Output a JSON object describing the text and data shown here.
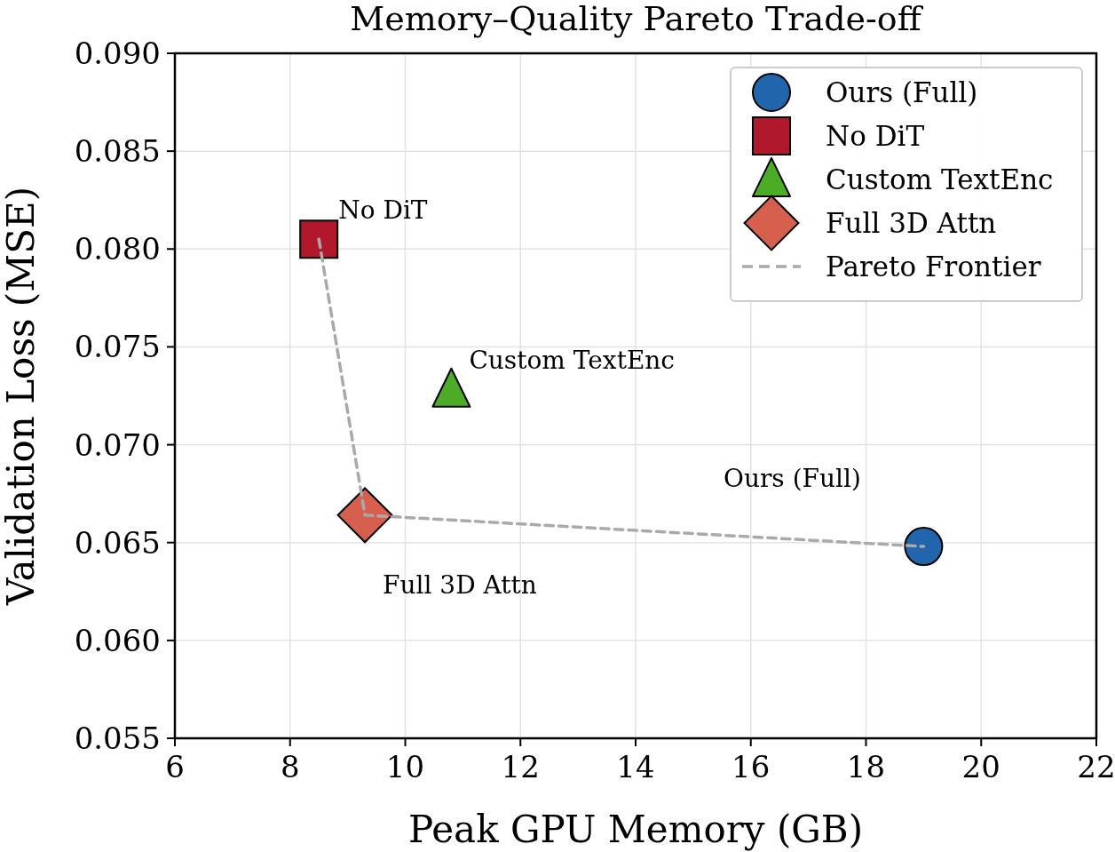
{
  "chart_data": {
    "type": "scatter",
    "title": "Memory–Quality Pareto Trade-off",
    "xlabel": "Peak GPU Memory (GB)",
    "ylabel": "Validation Loss (MSE)",
    "xlim": [
      6,
      22
    ],
    "xticks": [
      6,
      8,
      10,
      12,
      14,
      16,
      18,
      20,
      22
    ],
    "ylim": [
      0.055,
      0.09
    ],
    "yticks": [
      {
        "value": 0.055,
        "label": "0.055"
      },
      {
        "value": 0.06,
        "label": "0.060"
      },
      {
        "value": 0.065,
        "label": "0.065"
      },
      {
        "value": 0.07,
        "label": "0.070"
      },
      {
        "value": 0.075,
        "label": "0.075"
      },
      {
        "value": 0.08,
        "label": "0.080"
      },
      {
        "value": 0.085,
        "label": "0.085"
      },
      {
        "value": 0.09,
        "label": "0.090"
      }
    ],
    "grid": true,
    "legend": "top right",
    "series": [
      {
        "name": "Ours (Full)",
        "marker": "circle",
        "color": "#2166ac",
        "x": [
          19.0
        ],
        "values": [
          0.0648
        ]
      },
      {
        "name": "No DiT",
        "marker": "square",
        "color": "#b2182b",
        "x": [
          8.5
        ],
        "values": [
          0.0805
        ]
      },
      {
        "name": "Custom TextEnc",
        "marker": "triangle",
        "color": "#4dac26",
        "x": [
          10.8
        ],
        "values": [
          0.0728
        ]
      },
      {
        "name": "Full 3D Attn",
        "marker": "diamond",
        "color": "#d6604d",
        "x": [
          9.3
        ],
        "values": [
          0.0664
        ]
      },
      {
        "name": "Pareto Frontier",
        "type": "line",
        "marker": "none",
        "line_style": "dashed",
        "color": "#aaaaaa",
        "x": [
          8.5,
          9.3,
          19.0
        ],
        "values": [
          0.0805,
          0.0664,
          0.0648
        ]
      }
    ],
    "annotations": [
      {
        "text": "No DiT",
        "x": 8.5,
        "y": 0.0805
      },
      {
        "text": "Custom TextEnc",
        "x": 10.8,
        "y": 0.0728
      },
      "Ours (Full)",
      {
        "text": "Full 3D Attn",
        "x": 9.3,
        "y": 0.0664
      }
    ]
  }
}
